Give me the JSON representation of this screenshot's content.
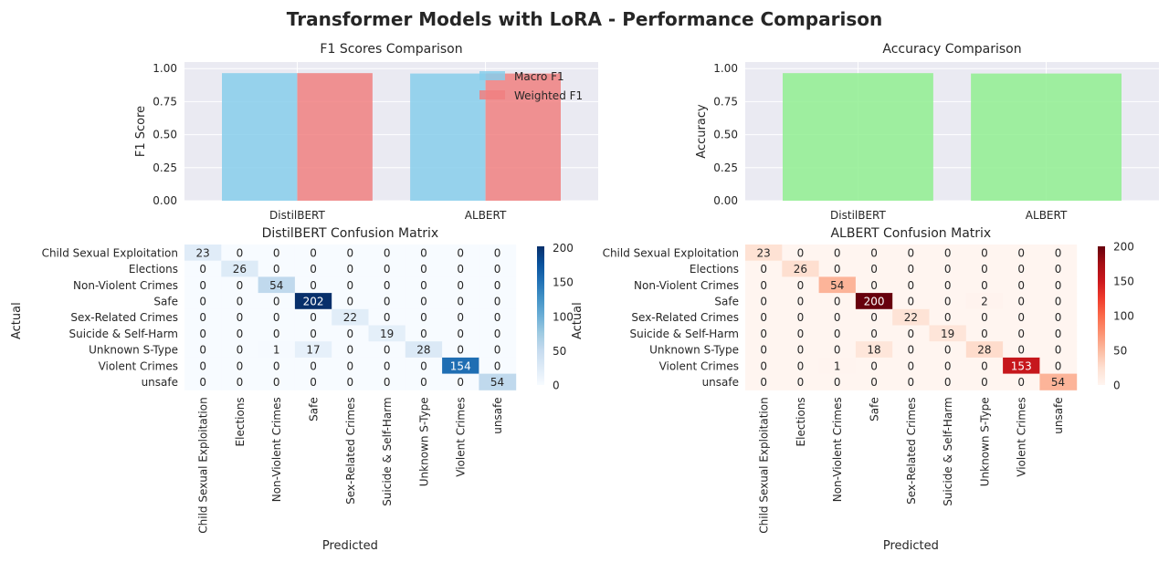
{
  "figure": {
    "title": "Transformer Models with LoRA - Performance Comparison"
  },
  "chart_data": [
    {
      "type": "bar",
      "title": "F1 Scores Comparison",
      "xlabel": "",
      "ylabel": "F1 Score",
      "categories": [
        "DistilBERT",
        "ALBERT"
      ],
      "ylim": [
        0,
        1.0
      ],
      "yticks": [
        "0.00",
        "0.25",
        "0.50",
        "0.75",
        "1.00"
      ],
      "grid": true,
      "legend_position": "top-right",
      "series": [
        {
          "name": "Macro F1",
          "values": [
            0.966,
            0.963
          ],
          "color": "#87ceeb"
        },
        {
          "name": "Weighted F1",
          "values": [
            0.966,
            0.963
          ],
          "color": "#f08080"
        }
      ]
    },
    {
      "type": "bar",
      "title": "Accuracy Comparison",
      "xlabel": "",
      "ylabel": "Accuracy",
      "categories": [
        "DistilBERT",
        "ALBERT"
      ],
      "ylim": [
        0,
        1.0
      ],
      "yticks": [
        "0.00",
        "0.25",
        "0.50",
        "0.75",
        "1.00"
      ],
      "grid": true,
      "values": [
        0.966,
        0.963
      ],
      "color": "#90ee90"
    },
    {
      "type": "heatmap",
      "title": "DistilBERT Confusion Matrix",
      "xlabel": "Predicted",
      "ylabel": "Actual",
      "colormap": "Blues",
      "vmin": 0,
      "vmax": 202,
      "colorbar_ticks": [
        "0",
        "50",
        "100",
        "150",
        "200"
      ],
      "labels": [
        "Child Sexual Exploitation",
        "Elections",
        "Non-Violent Crimes",
        "Safe",
        "Sex-Related Crimes",
        "Suicide & Self-Harm",
        "Unknown S-Type",
        "Violent Crimes",
        "unsafe"
      ],
      "matrix": [
        [
          23,
          0,
          0,
          0,
          0,
          0,
          0,
          0,
          0
        ],
        [
          0,
          26,
          0,
          0,
          0,
          0,
          0,
          0,
          0
        ],
        [
          0,
          0,
          54,
          0,
          0,
          0,
          0,
          0,
          0
        ],
        [
          0,
          0,
          0,
          202,
          0,
          0,
          0,
          0,
          0
        ],
        [
          0,
          0,
          0,
          0,
          22,
          0,
          0,
          0,
          0
        ],
        [
          0,
          0,
          0,
          0,
          0,
          19,
          0,
          0,
          0
        ],
        [
          0,
          0,
          1,
          17,
          0,
          0,
          28,
          0,
          0
        ],
        [
          0,
          0,
          0,
          0,
          0,
          0,
          0,
          154,
          0
        ],
        [
          0,
          0,
          0,
          0,
          0,
          0,
          0,
          0,
          54
        ]
      ]
    },
    {
      "type": "heatmap",
      "title": "ALBERT Confusion Matrix",
      "xlabel": "Predicted",
      "ylabel": "Actual",
      "colormap": "Reds",
      "vmin": 0,
      "vmax": 200,
      "colorbar_ticks": [
        "0",
        "50",
        "100",
        "150",
        "200"
      ],
      "labels": [
        "Child Sexual Exploitation",
        "Elections",
        "Non-Violent Crimes",
        "Safe",
        "Sex-Related Crimes",
        "Suicide & Self-Harm",
        "Unknown S-Type",
        "Violent Crimes",
        "unsafe"
      ],
      "matrix": [
        [
          23,
          0,
          0,
          0,
          0,
          0,
          0,
          0,
          0
        ],
        [
          0,
          26,
          0,
          0,
          0,
          0,
          0,
          0,
          0
        ],
        [
          0,
          0,
          54,
          0,
          0,
          0,
          0,
          0,
          0
        ],
        [
          0,
          0,
          0,
          200,
          0,
          0,
          2,
          0,
          0
        ],
        [
          0,
          0,
          0,
          0,
          22,
          0,
          0,
          0,
          0
        ],
        [
          0,
          0,
          0,
          0,
          0,
          19,
          0,
          0,
          0
        ],
        [
          0,
          0,
          0,
          18,
          0,
          0,
          28,
          0,
          0
        ],
        [
          0,
          0,
          1,
          0,
          0,
          0,
          0,
          153,
          0
        ],
        [
          0,
          0,
          0,
          0,
          0,
          0,
          0,
          0,
          54
        ]
      ]
    }
  ]
}
